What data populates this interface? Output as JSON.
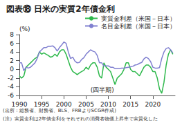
{
  "chart_data": {
    "type": "line",
    "title": "図表⑱ 日米の実質2年債金利",
    "y_label": "(%)",
    "annotation": "(四半期)",
    "source": "(出所：総務省、財務省、BLS、FRBよりSCGR作成)",
    "note": "(注）実質金利は2年債金利をそれぞれの消費者物価上昇率で実質化した",
    "x": [
      1990,
      1990.5,
      1991,
      1991.5,
      1992,
      1992.5,
      1993,
      1993.5,
      1994,
      1994.5,
      1995,
      1995.5,
      1996,
      1996.5,
      1997,
      1997.5,
      1998,
      1998.5,
      1999,
      1999.5,
      2000,
      2000.5,
      2001,
      2001.5,
      2002,
      2002.5,
      2003,
      2003.5,
      2004,
      2004.5,
      2005,
      2005.5,
      2006,
      2006.5,
      2007,
      2007.5,
      2008,
      2008.5,
      2009,
      2009.5,
      2010,
      2010.5,
      2011,
      2011.5,
      2012,
      2012.5,
      2013,
      2013.5,
      2014,
      2014.5,
      2015,
      2015.5,
      2016,
      2016.5,
      2017,
      2017.5,
      2018,
      2018.5,
      2019,
      2019.5,
      2020,
      2020.5,
      2021,
      2021.5,
      2022,
      2022.5,
      2023,
      2023.5,
      2024,
      2024.5
    ],
    "series": [
      {
        "name": "実質金利差（米国－日本）",
        "color": "#2db84b",
        "values": [
          -1.5,
          -2.0,
          -1.5,
          0.5,
          1.0,
          1.5,
          2.0,
          2.5,
          2.8,
          4.0,
          3.5,
          3.8,
          3.5,
          3.2,
          2.8,
          3.0,
          3.5,
          3.0,
          4.0,
          4.5,
          4.5,
          3.5,
          2.0,
          0.5,
          -0.5,
          -0.8,
          -1.2,
          -0.8,
          -0.5,
          -0.2,
          0.5,
          0.0,
          1.0,
          1.5,
          1.5,
          0.5,
          -1.5,
          -2.0,
          1.5,
          0.5,
          0.0,
          -0.5,
          -2.0,
          -3.5,
          -2.0,
          -1.5,
          -1.0,
          0.0,
          1.5,
          1.5,
          0.0,
          -0.5,
          -0.5,
          -1.0,
          -1.5,
          -0.5,
          0.5,
          1.0,
          1.0,
          0.5,
          -0.5,
          -0.5,
          -2.0,
          -4.5,
          -5.5,
          -3.0,
          1.0,
          3.5,
          4.5,
          3.5
        ]
      },
      {
        "name": "名目金利差（米国－日本）",
        "color": "#8080d0",
        "values": [
          1.5,
          1.5,
          -0.3,
          0.5,
          0.3,
          0.5,
          1.0,
          1.5,
          2.5,
          4.0,
          4.5,
          5.0,
          5.0,
          5.3,
          5.3,
          5.4,
          5.0,
          4.2,
          5.0,
          5.6,
          6.3,
          6.0,
          4.0,
          2.5,
          2.8,
          1.9,
          1.5,
          1.6,
          2.3,
          2.7,
          3.5,
          4.0,
          4.5,
          4.2,
          4.0,
          3.2,
          1.5,
          1.5,
          0.8,
          0.8,
          0.8,
          0.5,
          0.5,
          0.2,
          0.2,
          0.2,
          0.3,
          0.3,
          0.4,
          0.5,
          0.6,
          0.7,
          1.0,
          1.1,
          1.4,
          1.6,
          2.4,
          2.8,
          2.5,
          1.8,
          0.5,
          0.3,
          0.3,
          0.4,
          2.5,
          4.0,
          4.8,
          5.0,
          4.5,
          3.8
        ]
      }
    ],
    "xlim": [
      1990,
      2025
    ],
    "xticks": [
      1990,
      1995,
      2000,
      2005,
      2010,
      2015,
      2020
    ],
    "ylim": [
      -6,
      8
    ],
    "yticks": [
      -6,
      -4,
      -2,
      0,
      2,
      4,
      6,
      8
    ],
    "grid": false,
    "legend": "top right"
  }
}
